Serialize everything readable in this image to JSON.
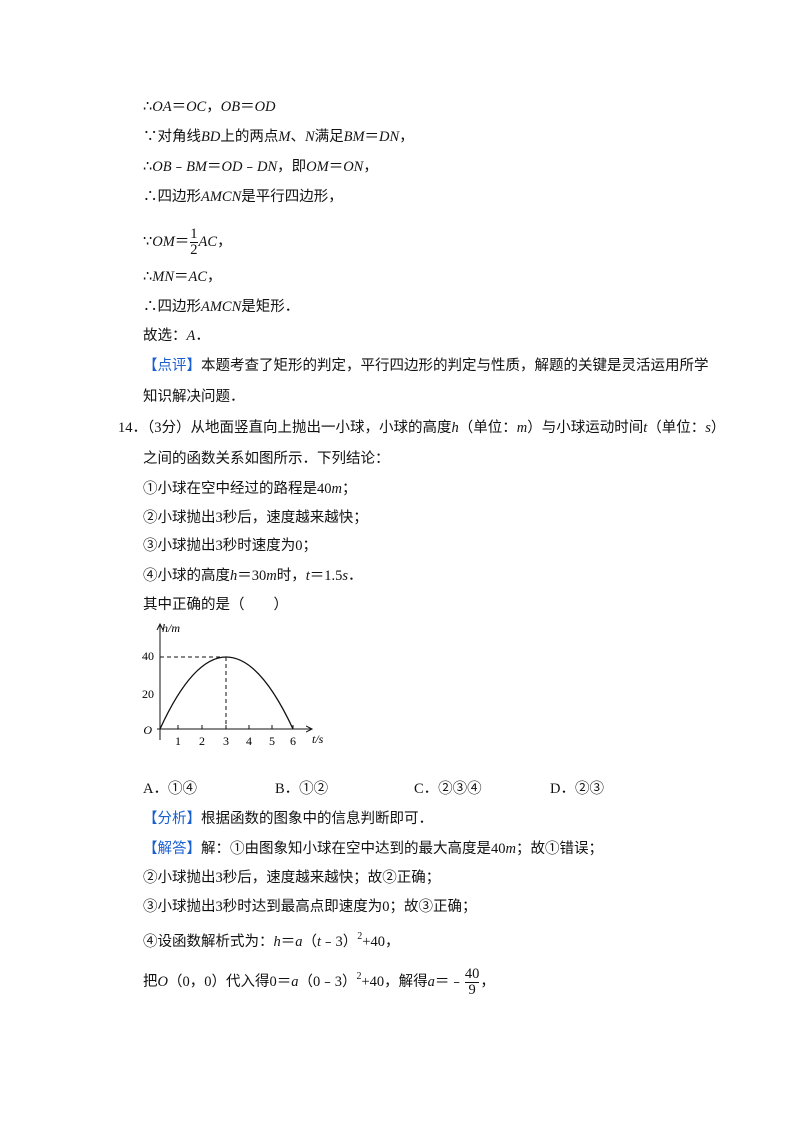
{
  "lines": [
    {
      "runs": [
        {
          "t": "∴"
        },
        {
          "t": "OA",
          "s": "i"
        },
        {
          "t": "＝"
        },
        {
          "t": "OC",
          "s": "i"
        },
        {
          "t": "，"
        },
        {
          "t": "OB",
          "s": "i"
        },
        {
          "t": "＝"
        },
        {
          "t": "OD",
          "s": "i"
        }
      ]
    },
    {
      "runs": [
        {
          "t": "∵对角线"
        },
        {
          "t": "BD",
          "s": "i"
        },
        {
          "t": "上的两点"
        },
        {
          "t": "M",
          "s": "i"
        },
        {
          "t": "、"
        },
        {
          "t": "N",
          "s": "i"
        },
        {
          "t": "满足"
        },
        {
          "t": "BM",
          "s": "i"
        },
        {
          "t": "＝"
        },
        {
          "t": "DN",
          "s": "i"
        },
        {
          "t": "，"
        }
      ]
    },
    {
      "runs": [
        {
          "t": "∴"
        },
        {
          "t": "OB",
          "s": "i"
        },
        {
          "t": "﹣"
        },
        {
          "t": "BM",
          "s": "i"
        },
        {
          "t": "＝"
        },
        {
          "t": "OD",
          "s": "i"
        },
        {
          "t": "﹣"
        },
        {
          "t": "DN",
          "s": "i"
        },
        {
          "t": "，即"
        },
        {
          "t": "OM",
          "s": "i"
        },
        {
          "t": "＝"
        },
        {
          "t": "ON",
          "s": "i"
        },
        {
          "t": "，"
        }
      ]
    },
    {
      "runs": [
        {
          "t": "∴四边形"
        },
        {
          "t": "AMCN",
          "s": "i"
        },
        {
          "t": "是平行四边形，"
        }
      ]
    },
    {
      "runs": [
        {
          "t": "∵"
        },
        {
          "t": "OM",
          "s": "i"
        },
        {
          "t": "＝"
        },
        {
          "num": "1",
          "den": "2",
          "s": "frac"
        },
        {
          "t": "AC",
          "s": "i"
        },
        {
          "t": "，"
        }
      ]
    },
    {
      "runs": [
        {
          "t": "∴"
        },
        {
          "t": "MN",
          "s": "i"
        },
        {
          "t": "＝"
        },
        {
          "t": "AC",
          "s": "i"
        },
        {
          "t": "，"
        }
      ]
    },
    {
      "runs": [
        {
          "t": "∴四边形"
        },
        {
          "t": "AMCN",
          "s": "i"
        },
        {
          "t": "是矩形．"
        }
      ]
    },
    {
      "runs": [
        {
          "t": "故选："
        },
        {
          "t": "A",
          "s": "i"
        },
        {
          "t": "．"
        }
      ]
    },
    {
      "runs": [
        {
          "t": "【点评】",
          "s": "tag"
        },
        {
          "t": "本题考查了矩形的判定，平行四边形的判定与性质，解题的关键是灵活运用所学"
        }
      ]
    },
    {
      "runs": [
        {
          "t": "知识解决问题．"
        }
      ]
    },
    {
      "runs": [
        {
          "t": "14．（3分）从地面竖直向上抛出一小球，小球的高度"
        },
        {
          "t": "h",
          "s": "i"
        },
        {
          "t": "（单位："
        },
        {
          "t": "m",
          "s": "i"
        },
        {
          "t": "）与小球运动时间"
        },
        {
          "t": "t",
          "s": "i"
        },
        {
          "t": "（单位："
        },
        {
          "t": "s",
          "s": "i"
        },
        {
          "t": "）"
        }
      ]
    },
    {
      "runs": [
        {
          "t": "之间的函数关系如图所示．下列结论："
        }
      ]
    },
    {
      "runs": [
        {
          "t": "①小球在空中经过的路程是40"
        },
        {
          "t": "m",
          "s": "i"
        },
        {
          "t": "；"
        }
      ]
    },
    {
      "runs": [
        {
          "t": "②小球抛出3秒后，速度越来越快；"
        }
      ]
    },
    {
      "runs": [
        {
          "t": "③小球抛出3秒时速度为0；"
        }
      ]
    },
    {
      "runs": [
        {
          "t": "④小球的高度"
        },
        {
          "t": "h",
          "s": "i"
        },
        {
          "t": "＝30"
        },
        {
          "t": "m",
          "s": "i"
        },
        {
          "t": "时，"
        },
        {
          "t": "t",
          "s": "i"
        },
        {
          "t": "＝1.5"
        },
        {
          "t": "s",
          "s": "i"
        },
        {
          "t": "．"
        }
      ]
    },
    {
      "runs": [
        {
          "t": "其中正确的是（　　）"
        }
      ]
    },
    {
      "runs": [
        {
          "t": "【分析】",
          "s": "tag"
        },
        {
          "t": "根据函数的图象中的信息判断即可．"
        }
      ]
    },
    {
      "runs": [
        {
          "t": "【解答】",
          "s": "tag"
        },
        {
          "t": "解：①由图象知小球在空中达到的最大高度是40"
        },
        {
          "t": "m",
          "s": "i"
        },
        {
          "t": "；故①错误；"
        }
      ]
    },
    {
      "runs": [
        {
          "t": "②小球抛出3秒后，速度越来越快；故②正确；"
        }
      ]
    },
    {
      "runs": [
        {
          "t": "③小球抛出3秒时达到最高点即速度为0；故③正确；"
        }
      ]
    },
    {
      "runs": [
        {
          "t": "④设函数解析式为："
        },
        {
          "t": "h",
          "s": "i"
        },
        {
          "t": "＝"
        },
        {
          "t": "a",
          "s": "i"
        },
        {
          "t": "（"
        },
        {
          "t": "t",
          "s": "i"
        },
        {
          "t": "﹣3）"
        },
        {
          "t": "2",
          "s": "sup"
        },
        {
          "t": "+40，"
        }
      ]
    },
    {
      "runs": [
        {
          "t": "把"
        },
        {
          "t": "O",
          "s": "i"
        },
        {
          "t": "（0，0）代入得0＝"
        },
        {
          "t": "a",
          "s": "i"
        },
        {
          "t": "（0﹣3）"
        },
        {
          "t": "2",
          "s": "sup"
        },
        {
          "t": "+40，解得"
        },
        {
          "t": "a",
          "s": "i"
        },
        {
          "t": "＝﹣"
        },
        {
          "num": "40",
          "den": "9",
          "s": "frac"
        },
        {
          "t": "，"
        }
      ]
    }
  ],
  "graph": {
    "y_label": "h/m",
    "y_ticks": [
      "40",
      "20"
    ],
    "origin": "O",
    "x_ticks": [
      "1",
      "2",
      "3",
      "4",
      "5",
      "6"
    ],
    "x_label": "t/s"
  },
  "options": [
    "A．①④",
    "B．①②",
    "C．②③④",
    "D．②③"
  ]
}
